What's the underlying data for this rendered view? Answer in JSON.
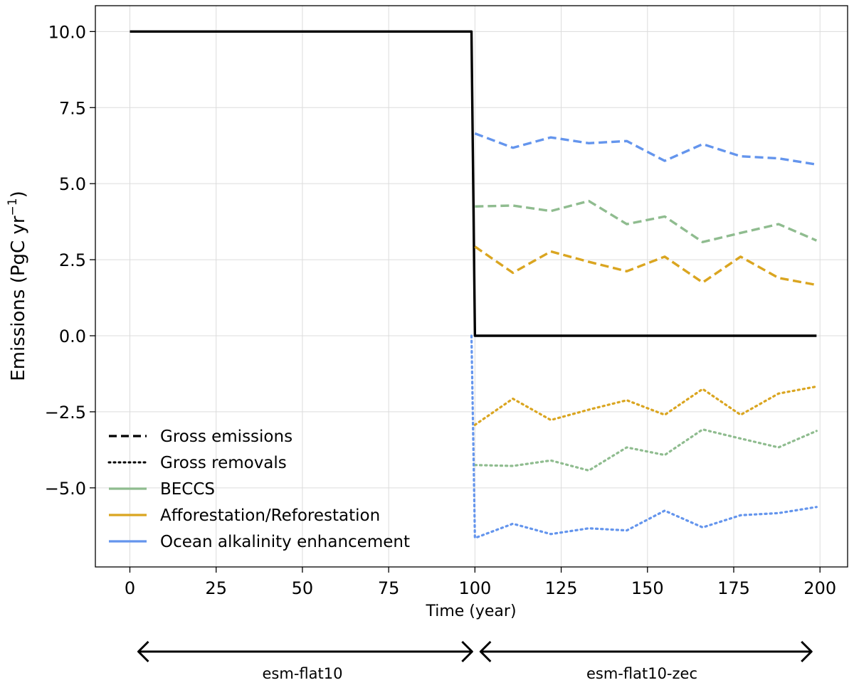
{
  "chart_data": {
    "type": "line",
    "xlabel": "Time (year)",
    "ylabel_main": "Emissions (PgC yr",
    "ylabel_sup": "−1",
    "ylabel_close": ")",
    "xlim": [
      -10,
      208
    ],
    "ylim": [
      -7.6,
      10.85
    ],
    "xticks": [
      0,
      25,
      50,
      75,
      100,
      125,
      150,
      175,
      200
    ],
    "xtick_labels": [
      "0",
      "25",
      "50",
      "75",
      "100",
      "125",
      "150",
      "175",
      "200"
    ],
    "yticks": [
      10,
      7.5,
      5,
      2.5,
      0,
      -2.5,
      -5
    ],
    "ytick_labels": [
      "10.0",
      "7.5",
      "5.0",
      "2.5",
      "0.0",
      "−2.5",
      "−5.0"
    ],
    "grid": true,
    "legend_position": "bottom-left",
    "legend": [
      {
        "label": "Gross emissions",
        "color": "#000000",
        "style": "dashed"
      },
      {
        "label": "Gross removals",
        "color": "#000000",
        "style": "dotted"
      },
      {
        "label": "BECCS",
        "color": "#8fbc8f",
        "style": "solid"
      },
      {
        "label": "Afforestation/Reforestation",
        "color": "#daa520",
        "style": "solid"
      },
      {
        "label": "Ocean alkalinity enhancement",
        "color": "#6495ed",
        "style": "solid"
      }
    ],
    "series": [
      {
        "key": "net",
        "color": "#000000",
        "style": "solid",
        "points": [
          [
            0,
            10.0
          ],
          [
            99,
            10.0
          ],
          [
            100,
            0.0
          ],
          [
            199,
            0.0
          ]
        ]
      },
      {
        "key": "oae-emissions",
        "color": "#6495ed",
        "style": "dashed",
        "points": [
          [
            100,
            6.65
          ],
          [
            111,
            6.18
          ],
          [
            122,
            6.52
          ],
          [
            133,
            6.33
          ],
          [
            144,
            6.4
          ],
          [
            155,
            5.75
          ],
          [
            166,
            6.3
          ],
          [
            177,
            5.9
          ],
          [
            188,
            5.83
          ],
          [
            199,
            5.63
          ]
        ]
      },
      {
        "key": "beccs-emissions",
        "color": "#8fbc8f",
        "style": "dashed",
        "points": [
          [
            100,
            4.25
          ],
          [
            111,
            4.28
          ],
          [
            122,
            4.1
          ],
          [
            133,
            4.43
          ],
          [
            144,
            3.67
          ],
          [
            155,
            3.92
          ],
          [
            166,
            3.08
          ],
          [
            177,
            3.38
          ],
          [
            188,
            3.67
          ],
          [
            199,
            3.13
          ]
        ]
      },
      {
        "key": "ar-emissions",
        "color": "#daa520",
        "style": "dashed",
        "points": [
          [
            100,
            2.93
          ],
          [
            111,
            2.07
          ],
          [
            122,
            2.77
          ],
          [
            133,
            2.43
          ],
          [
            144,
            2.12
          ],
          [
            155,
            2.6
          ],
          [
            166,
            1.75
          ],
          [
            177,
            2.6
          ],
          [
            188,
            1.9
          ],
          [
            199,
            1.67
          ]
        ]
      },
      {
        "key": "ar-removals",
        "color": "#daa520",
        "style": "dotted",
        "points": [
          [
            100,
            -2.93
          ],
          [
            111,
            -2.07
          ],
          [
            122,
            -2.77
          ],
          [
            133,
            -2.43
          ],
          [
            144,
            -2.12
          ],
          [
            155,
            -2.6
          ],
          [
            166,
            -1.75
          ],
          [
            177,
            -2.6
          ],
          [
            188,
            -1.9
          ],
          [
            199,
            -1.67
          ]
        ]
      },
      {
        "key": "beccs-removals",
        "color": "#8fbc8f",
        "style": "dotted",
        "points": [
          [
            100,
            -4.25
          ],
          [
            111,
            -4.28
          ],
          [
            122,
            -4.1
          ],
          [
            133,
            -4.43
          ],
          [
            144,
            -3.67
          ],
          [
            155,
            -3.92
          ],
          [
            166,
            -3.08
          ],
          [
            177,
            -3.38
          ],
          [
            188,
            -3.67
          ],
          [
            199,
            -3.13
          ]
        ]
      },
      {
        "key": "oae-removals",
        "color": "#6495ed",
        "style": "dotted",
        "points": [
          [
            99,
            0.0
          ],
          [
            100,
            -6.65
          ],
          [
            111,
            -6.18
          ],
          [
            122,
            -6.52
          ],
          [
            133,
            -6.33
          ],
          [
            144,
            -6.4
          ],
          [
            155,
            -5.75
          ],
          [
            166,
            -6.3
          ],
          [
            177,
            -5.9
          ],
          [
            188,
            -5.83
          ],
          [
            199,
            -5.63
          ]
        ]
      }
    ],
    "phases": [
      {
        "label": "esm-flat10",
        "start": 0,
        "end": 100
      },
      {
        "label": "esm-flat10-zec",
        "start": 100,
        "end": 200
      }
    ]
  }
}
